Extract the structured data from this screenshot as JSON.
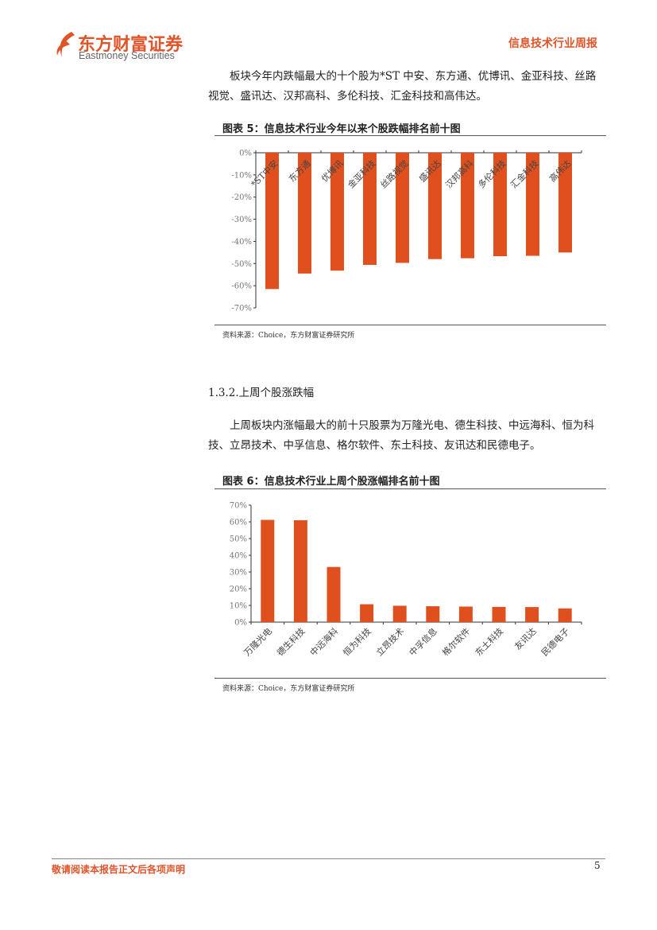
{
  "header": {
    "logo_cn": "东方财富证券",
    "logo_en": "Eastmoney Securities",
    "report_type": "信息技术行业周报"
  },
  "paragraph1": "板块今年内跌幅最大的十个股为*ST 中安、东方通、优博讯、金亚科技、丝路视觉、盛讯达、汉邦高科、多伦科技、汇金科技和高伟达。",
  "section_heading": "1.3.2.上周个股涨跌幅",
  "paragraph2": "上周板块内涨幅最大的前十只股票为万隆光电、德生科技、中远海科、恒为科技、立昂技术、中孚信息、格尔软件、东土科技、友讯达和民德电子。",
  "colors": {
    "brand": "#e0542a",
    "bar": "#e0501f"
  },
  "chart_data": [
    {
      "type": "bar",
      "title": "图表 5：信息技术行业今年以来个股跌幅排名前十图",
      "source": "资料来源：Choice，东方财富证券研究所",
      "categories": [
        "*ST中安",
        "东方通",
        "优博讯",
        "金亚科技",
        "丝路视觉",
        "盛讯达",
        "汉邦高科",
        "多伦科技",
        "汇金科技",
        "高伟达"
      ],
      "values": [
        -61.5,
        -54.5,
        -53.2,
        -50.6,
        -49.7,
        -48.0,
        -47.6,
        -46.7,
        -46.5,
        -45.0
      ],
      "ylim": [
        -70,
        0
      ],
      "yticks": [
        "0%",
        "-10%",
        "-20%",
        "-30%",
        "-40%",
        "-50%",
        "-60%",
        "-70%"
      ],
      "unit": "%",
      "grid": false
    },
    {
      "type": "bar",
      "title": "图表 6：信息技术行业上周个股涨幅排名前十图",
      "source": "资料来源：Choice，东方财富证券研究所",
      "categories": [
        "万隆光电",
        "德生科技",
        "中远海科",
        "恒为科技",
        "立昂技术",
        "中孚信息",
        "格尔软件",
        "东土科技",
        "友讯达",
        "民德电子"
      ],
      "values": [
        61.2,
        61.0,
        33.0,
        10.7,
        9.8,
        9.5,
        9.3,
        9.1,
        9.0,
        8.2
      ],
      "ylim": [
        0,
        70
      ],
      "yticks": [
        "0%",
        "10%",
        "20%",
        "30%",
        "40%",
        "50%",
        "60%",
        "70%"
      ],
      "unit": "%",
      "grid": false
    }
  ],
  "footer": {
    "disclaimer": "敬请阅读本报告正文后各项声明",
    "page": "5"
  }
}
